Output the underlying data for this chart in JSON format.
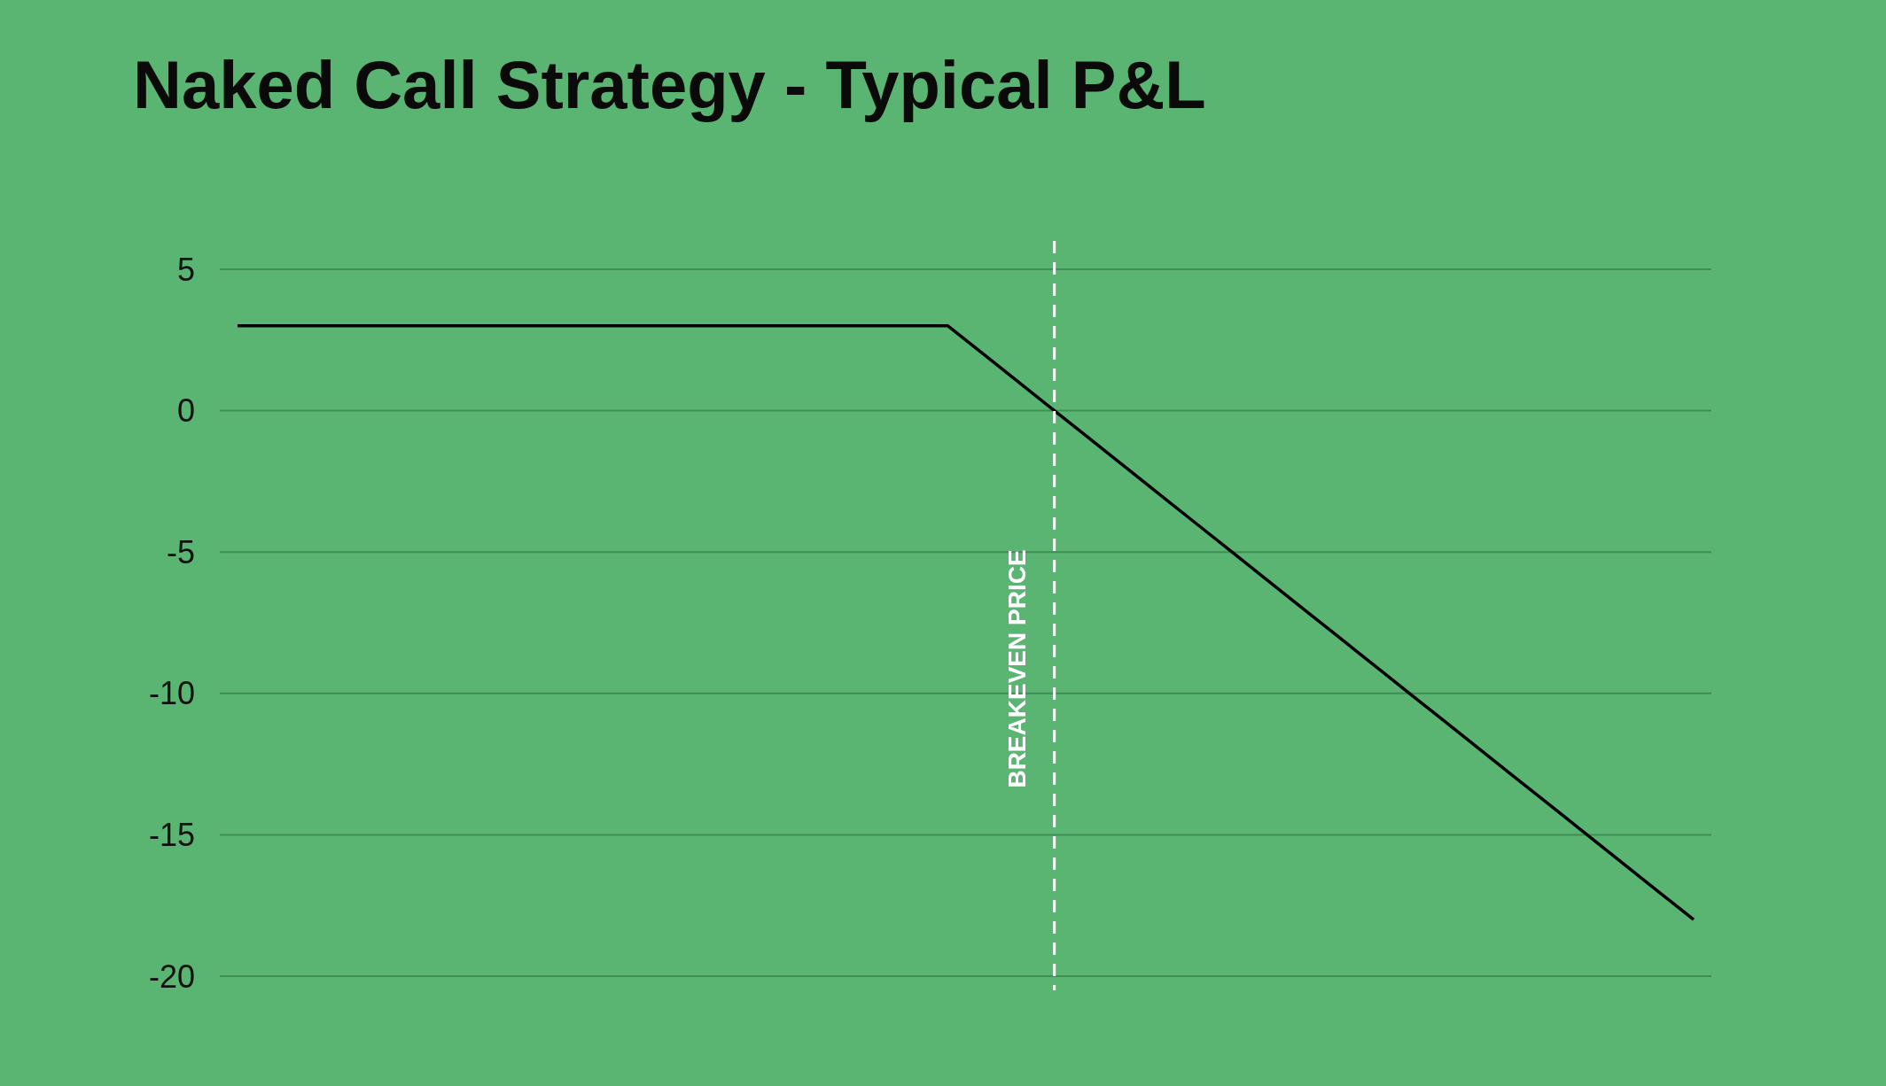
{
  "chart_data": {
    "type": "line",
    "title": "Naked Call Strategy - Typical P&L",
    "categories": [
      null,
      null,
      null,
      null,
      null,
      null,
      null,
      null,
      null,
      null,
      null,
      null,
      null,
      null,
      null,
      null,
      null,
      null,
      null,
      null,
      null,
      null,
      null,
      null,
      null,
      null,
      null,
      null,
      null,
      null,
      null,
      null,
      null,
      null,
      null,
      null,
      null,
      null,
      null,
      null,
      null,
      null
    ],
    "series": [
      {
        "color": "#000000",
        "values": [
          3,
          3,
          3,
          3,
          3,
          3,
          3,
          3,
          3,
          3,
          3,
          3,
          3,
          3,
          3,
          3,
          3,
          3,
          3,
          3,
          3,
          2,
          1,
          0,
          -1,
          -2,
          -3,
          -4,
          -5,
          -6,
          -7,
          -8,
          -9,
          -10,
          -11,
          -12,
          -13,
          -14,
          -15,
          -16,
          -17,
          -18
        ]
      }
    ],
    "ylim": [
      -20.5,
      6
    ],
    "yticks": [
      5,
      0,
      -5,
      -10,
      -15,
      -20
    ],
    "tick_labels": "y",
    "grid": "y",
    "marker": "none",
    "line_style": "solid",
    "annotations": [
      "BREAKEVEN PRICE"
    ]
  }
}
